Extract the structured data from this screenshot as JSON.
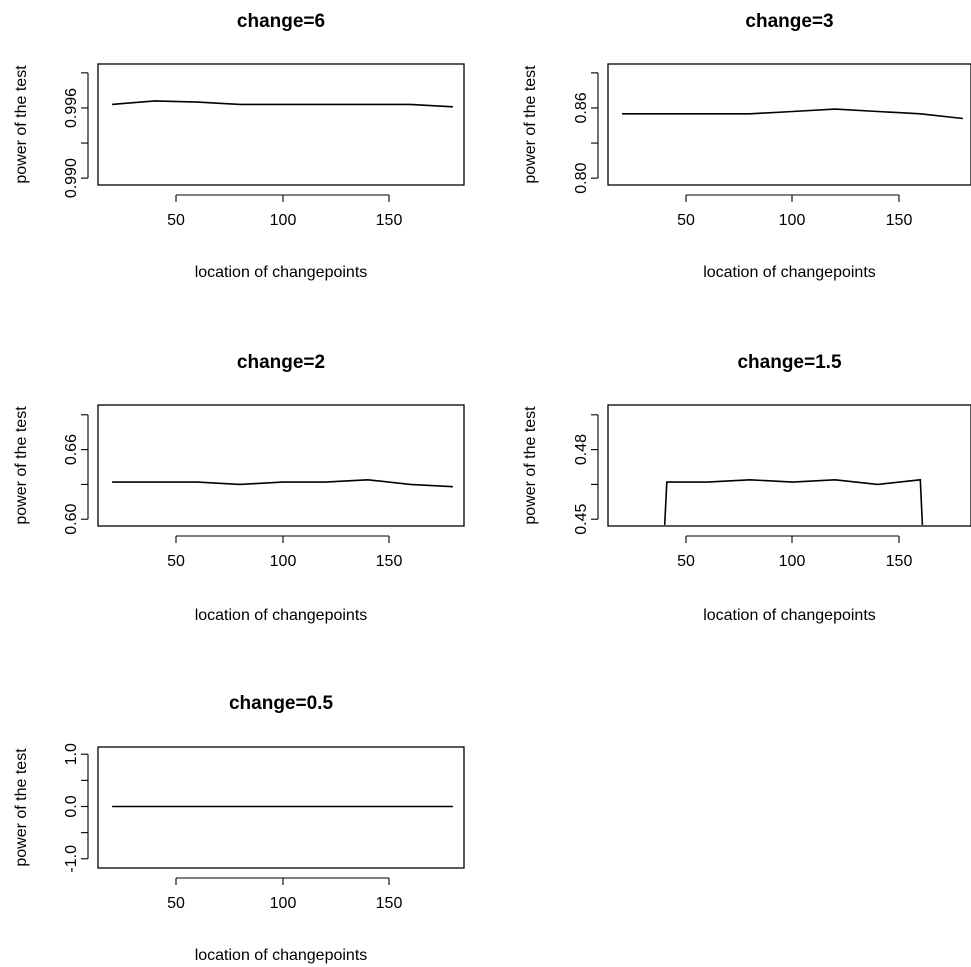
{
  "chart_data": [
    {
      "type": "line",
      "title": "change=6",
      "xlabel": "location of changepoints",
      "ylabel": "power of the test",
      "x_ticks": [
        50,
        100,
        150
      ],
      "y_ticks": [
        0.99,
        0.993,
        0.996,
        0.999
      ],
      "y_tick_labels": [
        "0.990",
        "",
        "0.996",
        ""
      ],
      "xlim": [
        20,
        180
      ],
      "ylim": [
        0.9895,
        0.9995
      ],
      "series": [
        {
          "x": [
            20,
            40,
            60,
            80,
            100,
            120,
            140,
            160,
            180
          ],
          "values": [
            0.9963,
            0.9966,
            0.9965,
            0.9963,
            0.9963,
            0.9963,
            0.9963,
            0.9963,
            0.9961
          ]
        }
      ]
    },
    {
      "type": "line",
      "title": "change=3",
      "xlabel": "location of changepoints",
      "ylabel": "power of the test",
      "x_ticks": [
        50,
        100,
        150
      ],
      "y_ticks": [
        0.8,
        0.83,
        0.86,
        0.89
      ],
      "y_tick_labels": [
        "0.80",
        "",
        "0.86",
        ""
      ],
      "xlim": [
        20,
        180
      ],
      "ylim": [
        0.795,
        0.895
      ],
      "series": [
        {
          "x": [
            20,
            40,
            60,
            80,
            100,
            120,
            140,
            160,
            180
          ],
          "values": [
            0.855,
            0.855,
            0.855,
            0.855,
            0.857,
            0.859,
            0.857,
            0.855,
            0.851
          ]
        }
      ]
    },
    {
      "type": "line",
      "title": "change=2",
      "xlabel": "location of changepoints",
      "ylabel": "power of the test",
      "x_ticks": [
        50,
        100,
        150
      ],
      "y_ticks": [
        0.6,
        0.63,
        0.66,
        0.69
      ],
      "y_tick_labels": [
        "0.60",
        "",
        "0.66",
        ""
      ],
      "xlim": [
        20,
        180
      ],
      "ylim": [
        0.595,
        0.695
      ],
      "series": [
        {
          "x": [
            20,
            40,
            60,
            80,
            100,
            120,
            140,
            160,
            180
          ],
          "values": [
            0.632,
            0.632,
            0.632,
            0.63,
            0.632,
            0.632,
            0.634,
            0.63,
            0.628
          ]
        }
      ]
    },
    {
      "type": "line",
      "title": "change=1.5",
      "xlabel": "location of changepoints",
      "ylabel": "power of the test",
      "x_ticks": [
        50,
        100,
        150
      ],
      "y_ticks": [
        0.45,
        0.465,
        0.48,
        0.495
      ],
      "y_tick_labels": [
        "0.45",
        "",
        "0.48",
        ""
      ],
      "xlim": [
        20,
        180
      ],
      "ylim": [
        0.4475,
        0.4975
      ],
      "series": [
        {
          "x": [
            40,
            41,
            60,
            80,
            100,
            120,
            140,
            160,
            161
          ],
          "values": [
            0.4475,
            0.466,
            0.466,
            0.467,
            0.466,
            0.467,
            0.465,
            0.467,
            0.4475
          ]
        }
      ]
    },
    {
      "type": "line",
      "title": "change=0.5",
      "xlabel": "location of changepoints",
      "ylabel": "power of the test",
      "x_ticks": [
        50,
        100,
        150
      ],
      "y_ticks": [
        -1.0,
        -0.5,
        0.0,
        0.5,
        1.0
      ],
      "y_tick_labels": [
        "-1.0",
        "",
        "0.0",
        "",
        "1.0"
      ],
      "xlim": [
        20,
        180
      ],
      "ylim": [
        -1.1,
        1.1
      ],
      "series": [
        {
          "x": [
            20,
            40,
            60,
            80,
            100,
            120,
            140,
            160,
            180
          ],
          "values": [
            0,
            0,
            0,
            0,
            0,
            0,
            0,
            0,
            0
          ]
        }
      ]
    }
  ]
}
